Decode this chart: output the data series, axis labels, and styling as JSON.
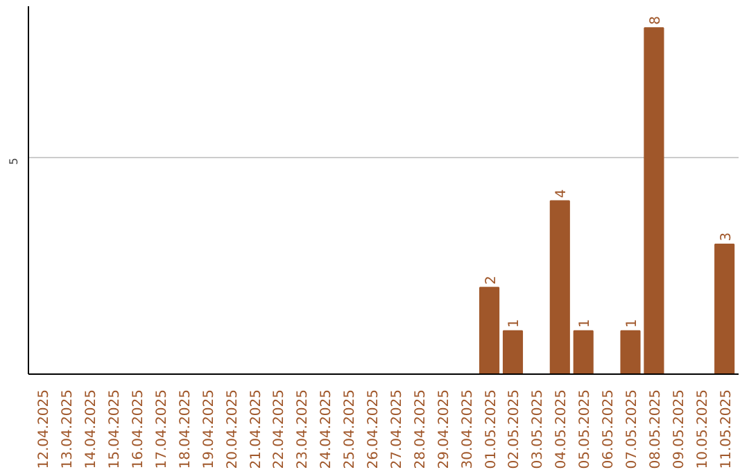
{
  "chart_data": {
    "type": "bar",
    "categories": [
      "12.04.2025",
      "13.04.2025",
      "14.04.2025",
      "15.04.2025",
      "16.04.2025",
      "17.04.2025",
      "18.04.2025",
      "19.04.2025",
      "20.04.2025",
      "21.04.2025",
      "22.04.2025",
      "23.04.2025",
      "24.04.2025",
      "25.04.2025",
      "26.04.2025",
      "27.04.2025",
      "28.04.2025",
      "29.04.2025",
      "30.04.2025",
      "01.05.2025",
      "02.05.2025",
      "03.05.2025",
      "04.05.2025",
      "05.05.2025",
      "06.05.2025",
      "07.05.2025",
      "08.05.2025",
      "09.05.2025",
      "10.05.2025",
      "11.05.2025"
    ],
    "values": [
      null,
      null,
      null,
      null,
      null,
      null,
      null,
      null,
      null,
      null,
      null,
      null,
      null,
      null,
      null,
      null,
      null,
      null,
      null,
      2,
      1,
      null,
      4,
      1,
      null,
      1,
      8,
      null,
      null,
      3
    ],
    "color": "#a0572a",
    "ylim": [
      0,
      8.5
    ],
    "yticks": [
      5
    ],
    "grid": "y",
    "data_labels": true
  }
}
